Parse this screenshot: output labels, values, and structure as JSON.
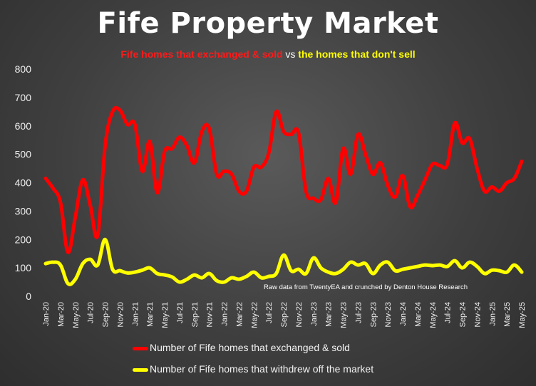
{
  "title": "Fife Property Market",
  "subtitle": {
    "part1": "Fife homes that exchanged & sold",
    "part2": "vs",
    "part3": "the homes that don't sell"
  },
  "annotation": "Raw data from TwentyEA and crunched by Denton House Research",
  "colors": {
    "sold": "#ff0000",
    "withdrawn": "#ffff00",
    "background": "#404040"
  },
  "chart_data": {
    "type": "line",
    "title": "Fife Property Market",
    "xlabel": "",
    "ylabel": "",
    "ylim": [
      0,
      800
    ],
    "yticks": [
      0,
      100,
      200,
      300,
      400,
      500,
      600,
      700,
      800
    ],
    "x": [
      "Jan-20",
      "Feb-20",
      "Mar-20",
      "Apr-20",
      "May-20",
      "Jun-20",
      "Jul-20",
      "Aug-20",
      "Sep-20",
      "Oct-20",
      "Nov-20",
      "Dec-20",
      "Jan-21",
      "Feb-21",
      "Mar-21",
      "Apr-21",
      "May-21",
      "Jun-21",
      "Jul-21",
      "Aug-21",
      "Sep-21",
      "Oct-21",
      "Nov-21",
      "Dec-21",
      "Jan-22",
      "Feb-22",
      "Mar-22",
      "Apr-22",
      "May-22",
      "Jun-22",
      "Jul-22",
      "Aug-22",
      "Sep-22",
      "Oct-22",
      "Nov-22",
      "Dec-22",
      "Jan-23",
      "Feb-23",
      "Mar-23",
      "Apr-23",
      "May-23",
      "Jun-23",
      "Jul-23",
      "Aug-23",
      "Sep-23",
      "Oct-23",
      "Nov-23",
      "Dec-23",
      "Jan-24",
      "Feb-24",
      "Mar-24",
      "Apr-24",
      "May-24",
      "Jun-24",
      "Jul-24",
      "Aug-24",
      "Sep-24",
      "Oct-24",
      "Nov-24",
      "Dec-24",
      "Jan-25",
      "Feb-25",
      "Mar-25",
      "Apr-25",
      "May-25"
    ],
    "tick_labels": [
      "Jan-20",
      "Mar-20",
      "May-20",
      "Jul-20",
      "Sep-20",
      "Nov-20",
      "Jan-21",
      "Mar-21",
      "May-21",
      "Jul-21",
      "Sep-21",
      "Nov-21",
      "Jan-22",
      "Mar-22",
      "May-22",
      "Jul-22",
      "Sep-22",
      "Nov-22",
      "Jan-23",
      "Mar-23",
      "May-23",
      "Jul-23",
      "Sep-23",
      "Nov-23",
      "Jan-24",
      "Mar-24",
      "May-24",
      "Jul-24",
      "Sep-24",
      "Nov-24",
      "Jan-25",
      "Mar-25",
      "May-25"
    ],
    "series": [
      {
        "name": "Number of Fife homes that exchanged & sold",
        "color": "#ff0000",
        "values": [
          415,
          380,
          330,
          155,
          280,
          410,
          320,
          215,
          530,
          650,
          655,
          605,
          605,
          440,
          545,
          365,
          510,
          520,
          560,
          530,
          470,
          580,
          590,
          430,
          440,
          430,
          370,
          370,
          455,
          455,
          505,
          650,
          580,
          570,
          575,
          370,
          345,
          340,
          415,
          330,
          520,
          430,
          570,
          500,
          430,
          470,
          390,
          350,
          425,
          315,
          355,
          410,
          465,
          460,
          465,
          610,
          540,
          555,
          450,
          370,
          385,
          370,
          400,
          415,
          475
        ]
      },
      {
        "name": "Number of Fife homes that withdrew off the market",
        "color": "#ffff00",
        "values": [
          115,
          120,
          110,
          45,
          60,
          115,
          130,
          110,
          200,
          95,
          90,
          82,
          85,
          92,
          100,
          80,
          75,
          68,
          50,
          60,
          75,
          65,
          80,
          55,
          50,
          65,
          60,
          70,
          85,
          65,
          70,
          80,
          145,
          90,
          95,
          80,
          135,
          100,
          85,
          80,
          95,
          120,
          110,
          115,
          80,
          110,
          120,
          90,
          95,
          100,
          105,
          110,
          108,
          110,
          105,
          125,
          100,
          120,
          105,
          80,
          92,
          90,
          85,
          110,
          85
        ]
      }
    ],
    "legend_position": "bottom",
    "grid": false
  }
}
